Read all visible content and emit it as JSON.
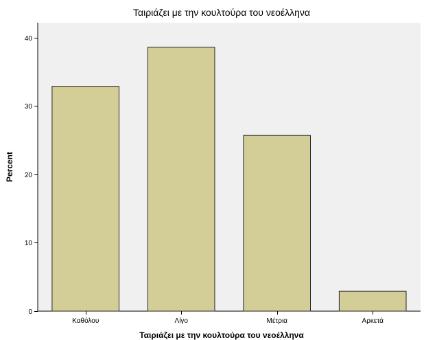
{
  "chart_data": {
    "type": "bar",
    "title": "Ταιριάζει με την κουλτούρα του νεοέλληνα",
    "xlabel": "Ταιριάζει με την κουλτούρα του νεοέλληνα",
    "ylabel": "Percent",
    "categories": [
      "Καθόλου",
      "Λίγο",
      "Μέτρια",
      "Αρκετά"
    ],
    "values": [
      32.9,
      38.6,
      25.7,
      2.9
    ],
    "yticks": [
      "0",
      "10",
      "20",
      "30",
      "40"
    ],
    "ylim": [
      0,
      42.2
    ],
    "grid": false,
    "legend": "none",
    "colors": {
      "plot_background": "#f0f0f0",
      "bar_fill": "#d3ce97",
      "bar_stroke": "#222222",
      "axis": "#000000"
    }
  }
}
